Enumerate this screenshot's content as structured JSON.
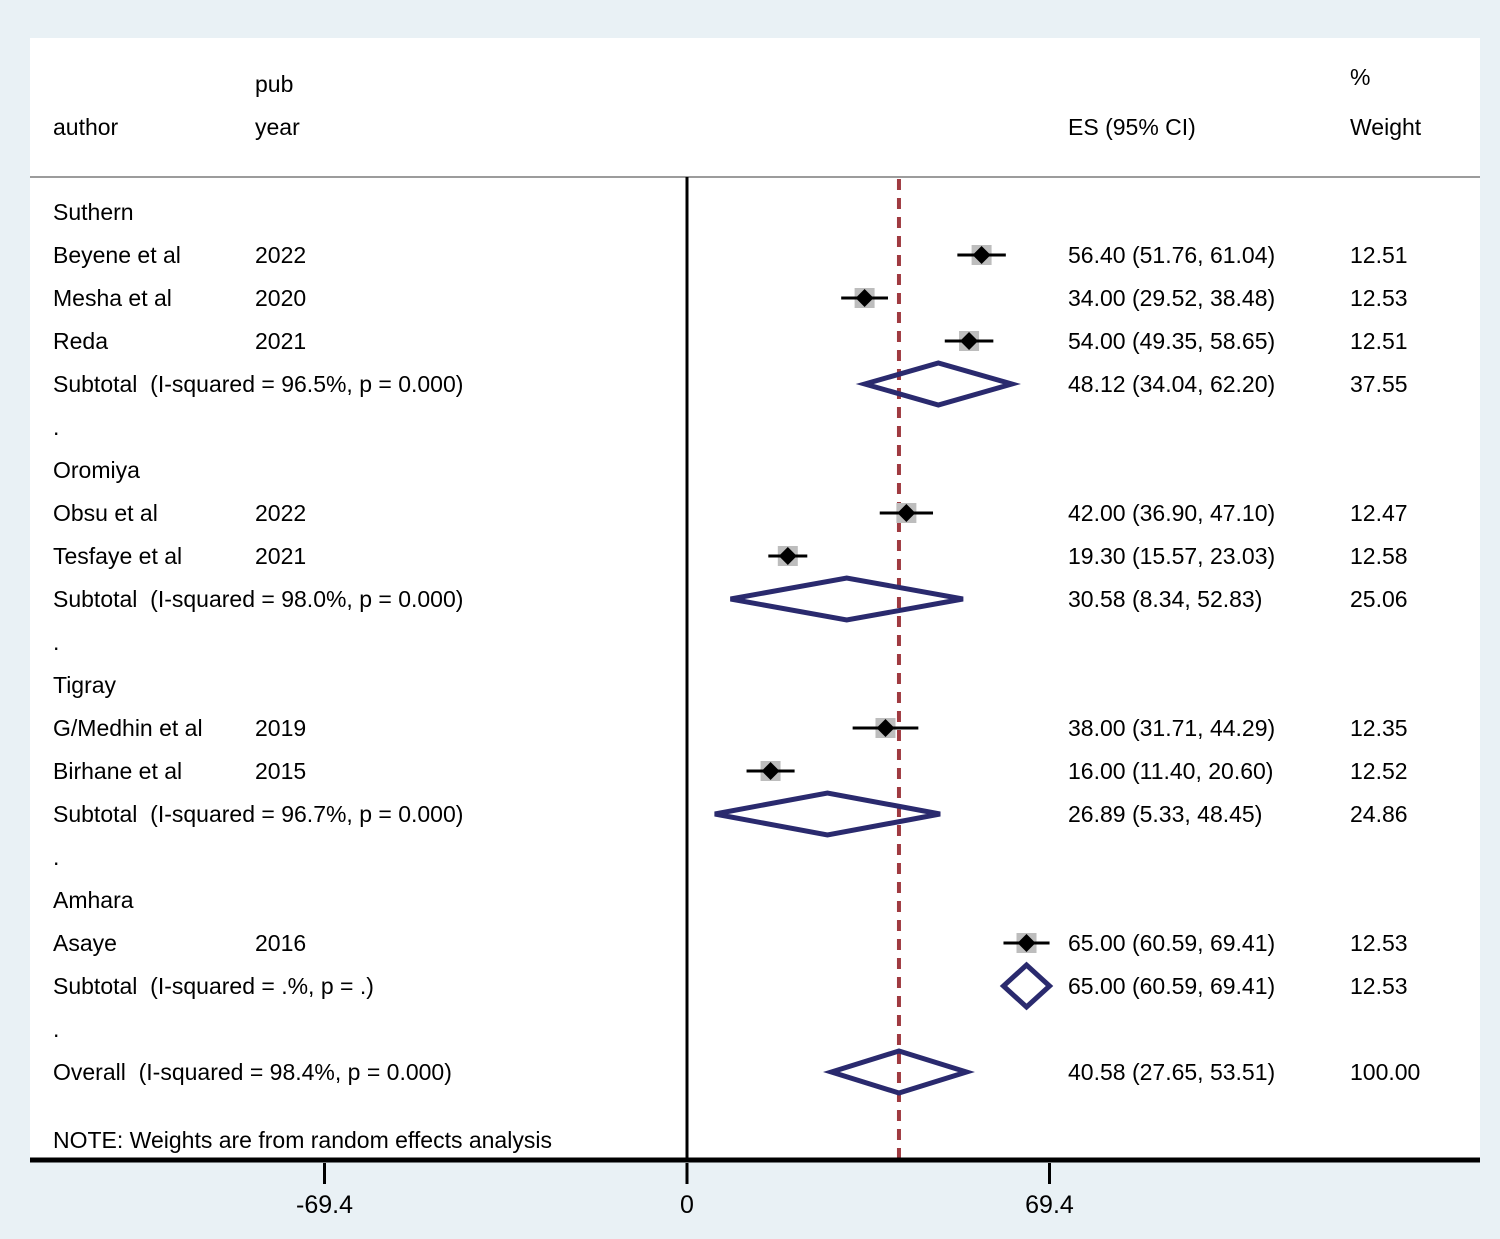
{
  "header": {
    "author": "author",
    "pub": "pub",
    "year": "year",
    "es": "ES (95% CI)",
    "percent": "%",
    "weight": "Weight"
  },
  "note": "NOTE: Weights are from random effects analysis",
  "colors": {
    "background": "#e9f1f5",
    "panel": "#ffffff",
    "diamond_outline": "#2a2a6e",
    "null_line": "#9f3a40",
    "weight_box": "#bdbdbd",
    "axis": "#000000",
    "divider": "#9c9c9c",
    "text": "#000000"
  },
  "chart_data": {
    "type": "forest",
    "x_axis": {
      "ticks": [
        {
          "value": -69.4,
          "label": "-69.4"
        },
        {
          "value": 0,
          "label": "0"
        },
        {
          "value": 69.4,
          "label": "69.4"
        }
      ],
      "zero_line": 0,
      "dashed_line_at": 40.58
    },
    "groups": [
      {
        "name": "Suthern",
        "studies": [
          {
            "author": "Beyene et al",
            "year": "2022",
            "es": 56.4,
            "ci_low": 51.76,
            "ci_high": 61.04,
            "ci_label": "56.40 (51.76, 61.04)",
            "weight": "12.51"
          },
          {
            "author": "Mesha et al",
            "year": "2020",
            "es": 34.0,
            "ci_low": 29.52,
            "ci_high": 38.48,
            "ci_label": "34.00 (29.52, 38.48)",
            "weight": "12.53"
          },
          {
            "author": "Reda",
            "year": "2021",
            "es": 54.0,
            "ci_low": 49.35,
            "ci_high": 58.65,
            "ci_label": "54.00 (49.35, 58.65)",
            "weight": "12.51"
          }
        ],
        "subtotal": {
          "label": "Subtotal  (I-squared = 96.5%, p = 0.000)",
          "es": 48.12,
          "ci_low": 34.04,
          "ci_high": 62.2,
          "ci_label": "48.12 (34.04, 62.20)",
          "weight": "37.55"
        }
      },
      {
        "name": "Oromiya",
        "studies": [
          {
            "author": "Obsu et al",
            "year": "2022",
            "es": 42.0,
            "ci_low": 36.9,
            "ci_high": 47.1,
            "ci_label": "42.00 (36.90, 47.10)",
            "weight": "12.47"
          },
          {
            "author": "Tesfaye et al",
            "year": "2021",
            "es": 19.3,
            "ci_low": 15.57,
            "ci_high": 23.03,
            "ci_label": "19.30 (15.57, 23.03)",
            "weight": "12.58"
          }
        ],
        "subtotal": {
          "label": "Subtotal  (I-squared = 98.0%, p = 0.000)",
          "es": 30.58,
          "ci_low": 8.34,
          "ci_high": 52.83,
          "ci_label": "30.58 (8.34, 52.83)",
          "weight": "25.06"
        }
      },
      {
        "name": "Tigray",
        "studies": [
          {
            "author": "G/Medhin et al",
            "year": "2019",
            "es": 38.0,
            "ci_low": 31.71,
            "ci_high": 44.29,
            "ci_label": "38.00 (31.71, 44.29)",
            "weight": "12.35"
          },
          {
            "author": "Birhane et al",
            "year": "2015",
            "es": 16.0,
            "ci_low": 11.4,
            "ci_high": 20.6,
            "ci_label": "16.00 (11.40, 20.60)",
            "weight": "12.52"
          }
        ],
        "subtotal": {
          "label": "Subtotal  (I-squared = 96.7%, p = 0.000)",
          "es": 26.89,
          "ci_low": 5.33,
          "ci_high": 48.45,
          "ci_label": "26.89 (5.33, 48.45)",
          "weight": "24.86"
        }
      },
      {
        "name": "Amhara",
        "studies": [
          {
            "author": "Asaye",
            "year": "2016",
            "es": 65.0,
            "ci_low": 60.59,
            "ci_high": 69.41,
            "ci_label": "65.00 (60.59, 69.41)",
            "weight": "12.53"
          }
        ],
        "subtotal": {
          "label": "Subtotal  (I-squared = .%, p = .)",
          "es": 65.0,
          "ci_low": 60.59,
          "ci_high": 69.41,
          "ci_label": "65.00 (60.59, 69.41)",
          "weight": "12.53"
        }
      }
    ],
    "overall": {
      "label": "Overall  (I-squared = 98.4%, p = 0.000)",
      "es": 40.58,
      "ci_low": 27.65,
      "ci_high": 53.51,
      "ci_label": "40.58 (27.65, 53.51)",
      "weight": "100.00"
    }
  }
}
